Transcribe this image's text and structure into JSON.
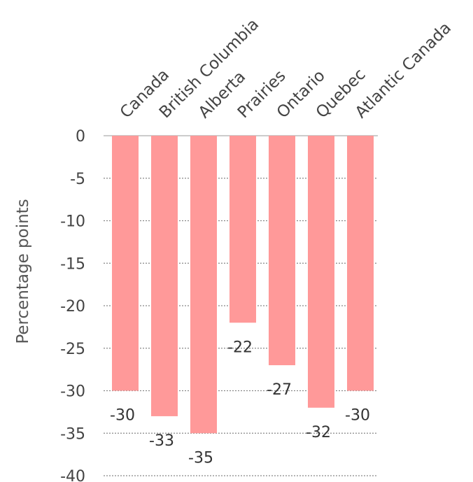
{
  "chart_data": {
    "type": "bar",
    "categories": [
      "Canada",
      "British Columbia",
      "Alberta",
      "Prairies",
      "Ontario",
      "Quebec",
      "Atlantic Canada"
    ],
    "values": [
      -30,
      -33,
      -35,
      -22,
      -27,
      -32,
      -30
    ],
    "data_labels": [
      "-30",
      "-33",
      "-35",
      "-22",
      "-27",
      "-32",
      "-30"
    ],
    "ylabel": "Percentage points",
    "ylim": [
      -40,
      0
    ],
    "yticks": [
      0,
      -5,
      -10,
      -15,
      -20,
      -25,
      -30,
      -35,
      -40
    ],
    "ytick_labels": [
      "0",
      "-5",
      "-10",
      "-15",
      "-20",
      "-25",
      "-30",
      "-35",
      "-40"
    ],
    "bar_color": "#ff9999",
    "grid": true,
    "category_label_position": "top, rotated"
  }
}
